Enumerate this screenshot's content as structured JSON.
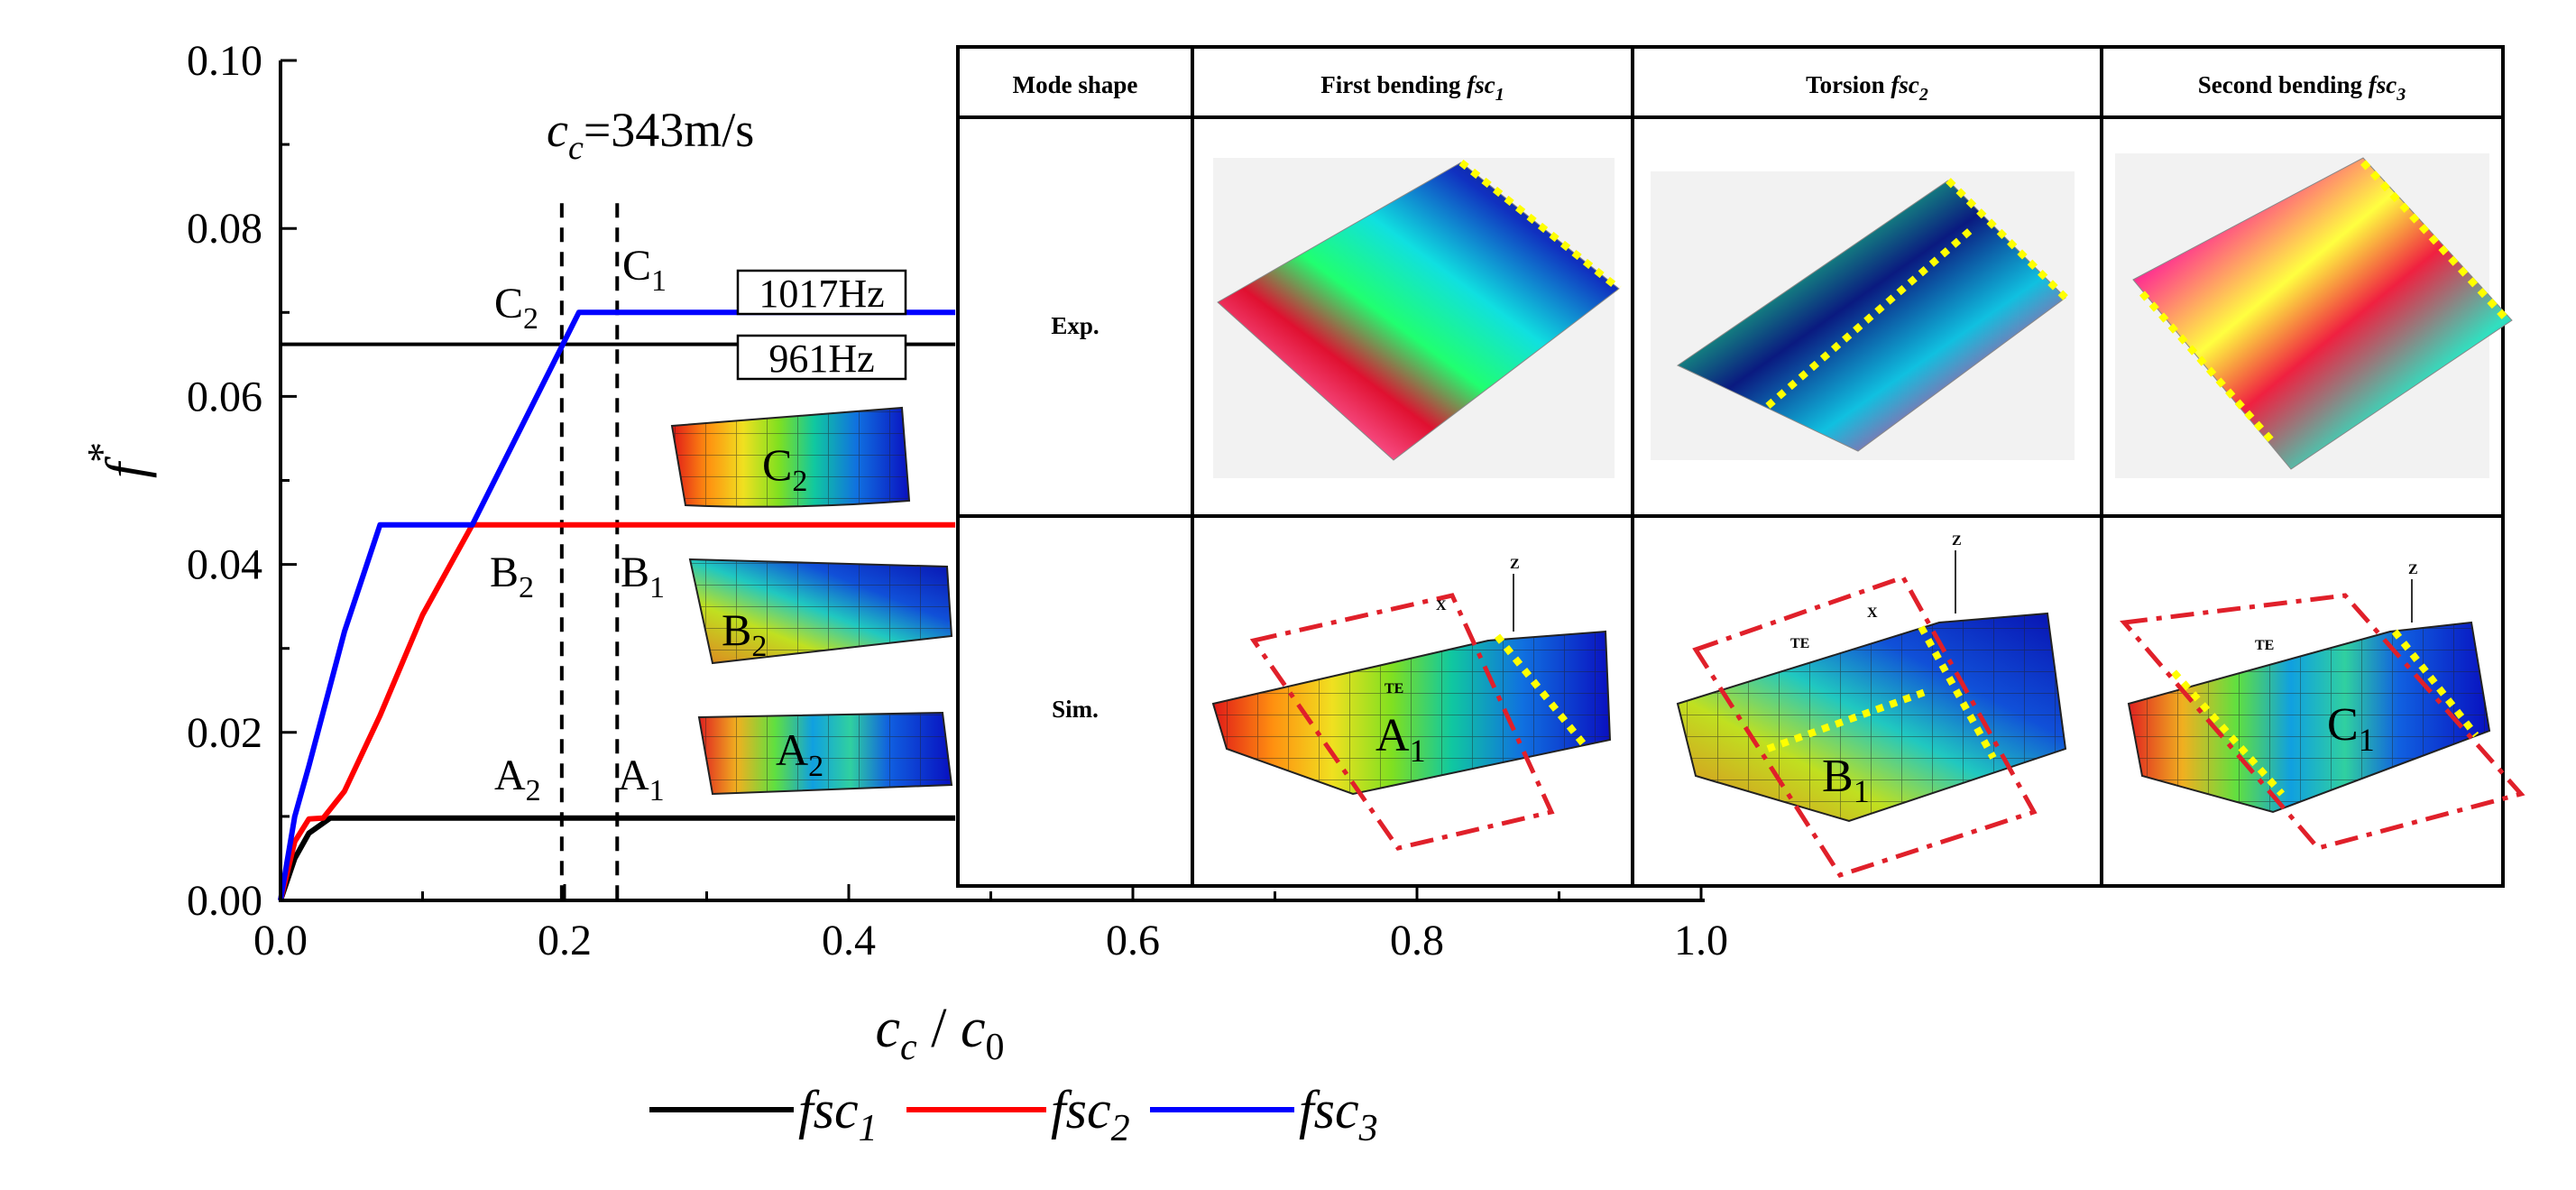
{
  "chart_data": {
    "type": "line",
    "title": "",
    "xlabel": {
      "base": "c",
      "sub": "c",
      "sep": " / ",
      "base2": "c",
      "sub2": "0"
    },
    "ylabel": {
      "base": "f",
      "sup": "*"
    },
    "xlim": [
      0.0,
      1.0
    ],
    "ylim": [
      0.0,
      0.1
    ],
    "x_ticks": [
      "0.0",
      "0.2",
      "0.4",
      "0.6",
      "0.8",
      "1.0"
    ],
    "y_ticks": [
      "0.00",
      "0.02",
      "0.04",
      "0.06",
      "0.08",
      "0.10"
    ],
    "series": [
      {
        "name": "fsc1",
        "color": "#000000",
        "x": [
          0.0,
          0.01,
          0.02,
          0.035,
          0.475
        ],
        "y": [
          0.0,
          0.005,
          0.008,
          0.0098,
          0.0098
        ]
      },
      {
        "name": "fsc2",
        "color": "#ff0000",
        "x": [
          0.0,
          0.01,
          0.02,
          0.03,
          0.045,
          0.07,
          0.1,
          0.135,
          0.475
        ],
        "y": [
          0.0,
          0.007,
          0.0097,
          0.0098,
          0.013,
          0.022,
          0.034,
          0.0447,
          0.0447
        ]
      },
      {
        "name": "fsc3",
        "color": "#0000ff",
        "x": [
          0.0,
          0.01,
          0.02,
          0.045,
          0.07,
          0.135,
          0.21,
          0.475
        ],
        "y": [
          0.0,
          0.01,
          0.016,
          0.032,
          0.0447,
          0.0447,
          0.07,
          0.07
        ]
      }
    ],
    "reference_lines": [
      {
        "type": "vertical",
        "x": 0.198,
        "style": "dashed"
      },
      {
        "type": "vertical",
        "x": 0.237,
        "style": "dashed"
      },
      {
        "type": "horizontal",
        "y": 0.0662,
        "style": "solid",
        "x_end": 0.475
      }
    ],
    "annotations": {
      "cc_label": {
        "base": "c",
        "sub": "c",
        "rest": "=343m/s"
      },
      "freq_1017": "1017Hz",
      "freq_961": "961Hz",
      "points": [
        {
          "base": "C",
          "sub": "2"
        },
        {
          "base": "C",
          "sub": "1"
        },
        {
          "base": "B",
          "sub": "2"
        },
        {
          "base": "B",
          "sub": "1"
        },
        {
          "base": "A",
          "sub": "2"
        },
        {
          "base": "A",
          "sub": "1"
        }
      ],
      "inset_labels": [
        {
          "base": "C",
          "sub": "2"
        },
        {
          "base": "B",
          "sub": "2"
        },
        {
          "base": "A",
          "sub": "2"
        }
      ]
    },
    "legend": {
      "position": "bottom",
      "entries": [
        {
          "base": "fsc",
          "sub": "1",
          "color": "#000000"
        },
        {
          "base": "fsc",
          "sub": "2",
          "color": "#ff0000"
        },
        {
          "base": "fsc",
          "sub": "3",
          "color": "#0000ff"
        }
      ]
    }
  },
  "mode_table": {
    "headers": [
      {
        "text": "Mode shape",
        "sub": ""
      },
      {
        "text": "First bending ",
        "italic": "fsc",
        "sub": "1"
      },
      {
        "text": "Torsion ",
        "italic": "fsc",
        "sub": "2"
      },
      {
        "text": "Second bending ",
        "italic": "fsc",
        "sub": "3"
      }
    ],
    "row_labels": [
      "Exp.",
      "Sim."
    ],
    "sim_labels": [
      {
        "base": "A",
        "sub": "1"
      },
      {
        "base": "B",
        "sub": "1"
      },
      {
        "base": "C",
        "sub": "1"
      }
    ],
    "small_marks": {
      "te": "TE",
      "x": "X",
      "z": "Z"
    }
  },
  "colors": {
    "fsc1": "#000000",
    "fsc2": "#ff0000",
    "fsc3": "#0000ff",
    "accent_dash": "#e0202a",
    "marker_yellow": "#ffff00"
  }
}
